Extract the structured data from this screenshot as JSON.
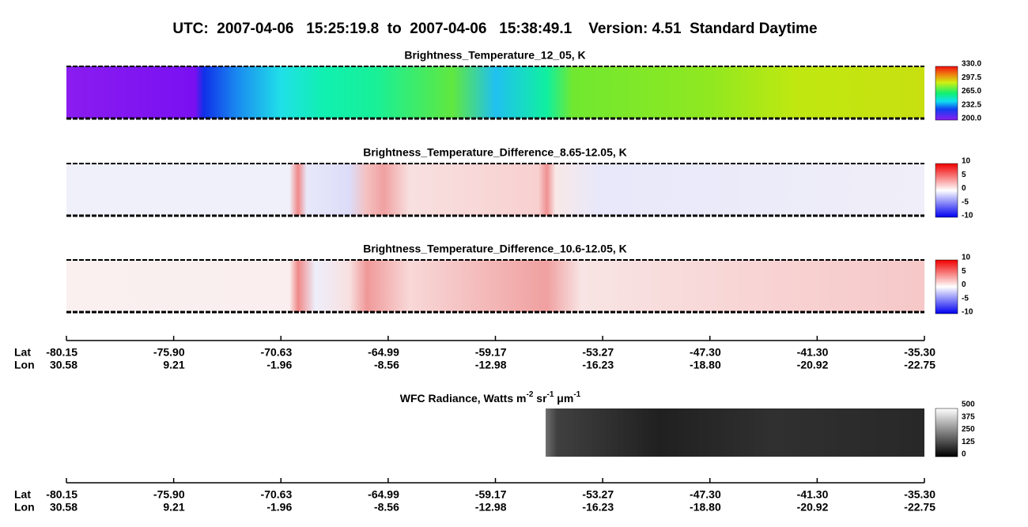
{
  "title": "UTC:  2007-04-06   15:25:19.8  to  2007-04-06   15:38:49.1    Version: 4.51  Standard Daytime",
  "panels": [
    {
      "title": "Brightness_Temperature_12_05, K",
      "colorbar_labels": [
        "330.0",
        "297.5",
        "265.0",
        "232.5",
        "200.0"
      ]
    },
    {
      "title": "Brightness_Temperature_Difference_8.65-12.05, K",
      "colorbar_labels": [
        "10",
        "5",
        "0",
        "-5",
        "-10"
      ]
    },
    {
      "title": "Brightness_Temperature_Difference_10.6-12.05, K",
      "colorbar_labels": [
        "10",
        "5",
        "0",
        "-5",
        "-10"
      ]
    }
  ],
  "wfc": {
    "title": {
      "text": "WFC Radiance, Watts m",
      "sup1": "-2",
      "text2": " sr",
      "sup2": "-1",
      "text3": " μm",
      "sup3": "-1"
    },
    "colorbar_labels": [
      "500",
      "375",
      "250",
      "125",
      "0"
    ]
  },
  "axes": [
    {
      "row_labels": [
        "Lat",
        "Lon"
      ],
      "lat": [
        "-80.15",
        "-75.90",
        "-70.63",
        "-64.99",
        "-59.17",
        "-53.27",
        "-47.30",
        "-41.30",
        "-35.30"
      ],
      "lon": [
        "30.58",
        "9.21",
        "-1.96",
        "-8.56",
        "-12.98",
        "-16.23",
        "-18.80",
        "-20.92",
        "-22.75"
      ]
    },
    {
      "row_labels": [
        "Lat",
        "Lon"
      ],
      "lat": [
        "-80.15",
        "-75.90",
        "-70.63",
        "-64.99",
        "-59.17",
        "-53.27",
        "-47.30",
        "-41.30",
        "-35.30"
      ],
      "lon": [
        "30.58",
        "9.21",
        "-1.96",
        "-8.56",
        "-12.98",
        "-16.23",
        "-18.80",
        "-20.92",
        "-22.75"
      ]
    }
  ]
}
